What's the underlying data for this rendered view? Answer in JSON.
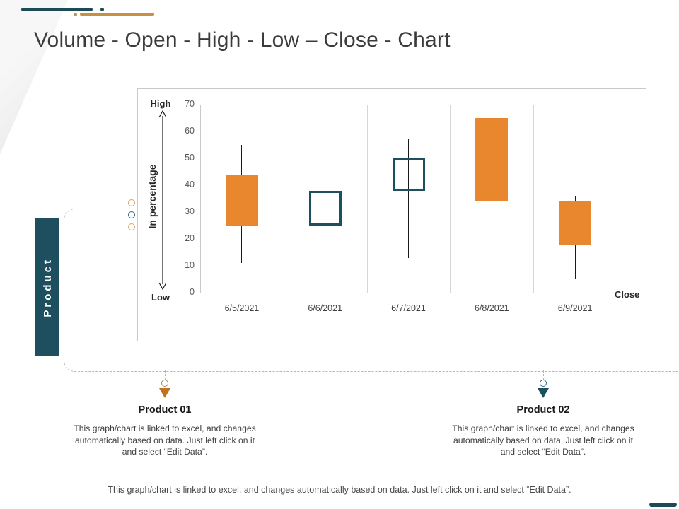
{
  "slide": {
    "title": "Volume - Open - High - Low – Close - Chart",
    "footer_note": "This graph/chart is linked to excel, and changes automatically based on data. Just left click on it and select “Edit Data”."
  },
  "colors": {
    "teal": "#1D4F5F",
    "orange": "#E8872E",
    "deco_teal": "#1D4A57",
    "deco_orange": "#C89044",
    "candle_down_fill": "#E8872E",
    "candle_up_border": "#1D4F5F",
    "grid": "#D6D6D6",
    "axis": "#C9C9C9"
  },
  "product_box": {
    "label": "Product"
  },
  "callouts": [
    {
      "title": "Product 01",
      "body": "This graph/chart is linked to excel, and changes automatically based on data. Just left click on it and select “Edit Data”.",
      "marker_color": "#C2701D"
    },
    {
      "title": "Product 02",
      "body": "This graph/chart is linked to excel, and changes automatically based on data. Just left click on it and select “Edit Data”.",
      "marker_color": "#1D4F5F"
    }
  ],
  "chart_data": {
    "type": "candlestick",
    "title": "",
    "x": [
      "6/5/2021",
      "6/6/2021",
      "6/7/2021",
      "6/8/2021",
      "6/9/2021"
    ],
    "series": [
      {
        "name": "Volume-Open-High-Low-Close",
        "points": [
          {
            "open": 44,
            "high": 55,
            "low": 11,
            "close": 25
          },
          {
            "open": 25,
            "high": 57,
            "low": 12,
            "close": 38
          },
          {
            "open": 38,
            "high": 57,
            "low": 13,
            "close": 50
          },
          {
            "open": 65,
            "high": 65,
            "low": 11,
            "close": 34
          },
          {
            "open": 34,
            "high": 36,
            "low": 5,
            "close": 18
          }
        ]
      }
    ],
    "ylabel": "In percentage",
    "xlabel": "",
    "ylim": [
      0,
      70
    ],
    "yticks": [
      0,
      10,
      20,
      30,
      40,
      50,
      60,
      70
    ],
    "grid": "vertical category separators",
    "legend": "none",
    "annotations": {
      "high_label": "High",
      "low_label": "Low",
      "close_label": "Close"
    },
    "style_note": "down candles solid orange, up candles hollow teal outline"
  }
}
